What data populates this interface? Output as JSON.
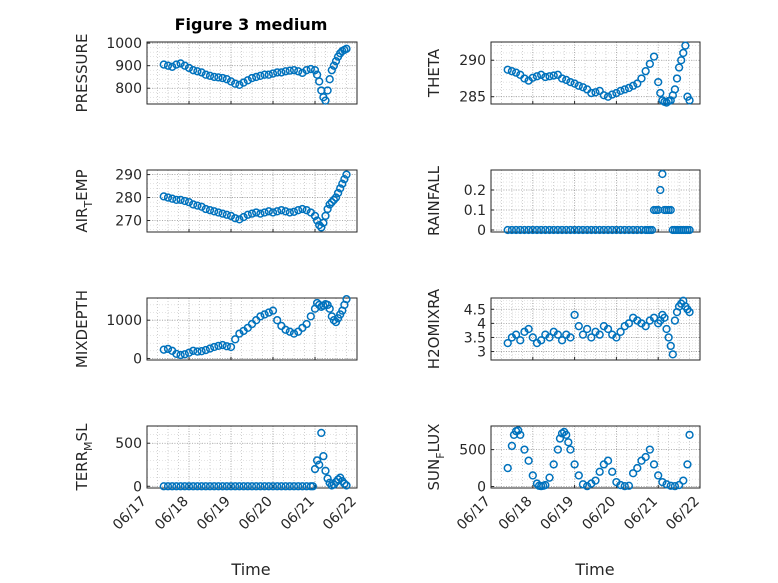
{
  "figure": {
    "title": "Figure 3 medium",
    "marker_color": "#0072bd",
    "grid": true,
    "grid_style": "dotted"
  },
  "x_axis": {
    "label": "Time",
    "range": [
      "06/17",
      "06/22"
    ],
    "tick_labels": [
      "06/17",
      "06/18",
      "06/19",
      "06/20",
      "06/21",
      "06/22"
    ]
  },
  "chart_data": [
    {
      "type": "scatter",
      "ylabel_main": "PRESSURE",
      "ylabel_sub": "",
      "ylim": [
        730,
        1005
      ],
      "yticks": [
        800,
        900,
        1000
      ],
      "ytick_labels": [
        "800",
        "900",
        "1000"
      ],
      "x_days": [
        0.4,
        0.5,
        0.6,
        0.7,
        0.8,
        0.9,
        1.0,
        1.1,
        1.2,
        1.3,
        1.4,
        1.5,
        1.6,
        1.7,
        1.8,
        1.9,
        2.0,
        2.1,
        2.2,
        2.3,
        2.4,
        2.5,
        2.6,
        2.7,
        2.8,
        2.9,
        3.0,
        3.1,
        3.2,
        3.3,
        3.4,
        3.5,
        3.6,
        3.7,
        3.8,
        3.9,
        4.0,
        4.05,
        4.1,
        4.15,
        4.2,
        4.25,
        4.3,
        4.35,
        4.4,
        4.45,
        4.5,
        4.55,
        4.6,
        4.65,
        4.7,
        4.75
      ],
      "y": [
        905,
        900,
        895,
        905,
        910,
        900,
        890,
        880,
        875,
        870,
        860,
        855,
        850,
        848,
        845,
        840,
        830,
        820,
        815,
        825,
        835,
        845,
        850,
        855,
        860,
        860,
        865,
        870,
        870,
        875,
        878,
        880,
        875,
        868,
        880,
        885,
        880,
        860,
        830,
        790,
        760,
        745,
        790,
        840,
        880,
        900,
        920,
        940,
        955,
        965,
        970,
        975
      ]
    },
    {
      "type": "scatter",
      "ylabel_main": "THETA",
      "ylabel_sub": "",
      "ylim": [
        284,
        292.5
      ],
      "yticks": [
        285,
        290
      ],
      "ytick_labels": [
        "285",
        "290"
      ],
      "x_days": [
        0.4,
        0.5,
        0.6,
        0.7,
        0.8,
        0.9,
        1.0,
        1.1,
        1.2,
        1.3,
        1.4,
        1.5,
        1.6,
        1.7,
        1.8,
        1.9,
        2.0,
        2.1,
        2.2,
        2.3,
        2.4,
        2.5,
        2.6,
        2.7,
        2.8,
        2.9,
        3.0,
        3.1,
        3.2,
        3.3,
        3.4,
        3.5,
        3.6,
        3.7,
        3.8,
        3.9,
        4.0,
        4.05,
        4.1,
        4.15,
        4.2,
        4.25,
        4.3,
        4.35,
        4.4,
        4.45,
        4.5,
        4.55,
        4.6,
        4.65,
        4.7,
        4.75
      ],
      "y": [
        288.7,
        288.5,
        288.3,
        288.0,
        287.5,
        287.2,
        287.6,
        287.8,
        288.0,
        287.7,
        287.8,
        287.9,
        288.0,
        287.5,
        287.3,
        287.0,
        286.8,
        286.5,
        286.3,
        286.0,
        285.5,
        285.6,
        285.8,
        285.2,
        285.0,
        285.3,
        285.5,
        285.8,
        286.0,
        286.2,
        286.5,
        286.8,
        287.5,
        288.5,
        289.5,
        290.5,
        287.0,
        285.5,
        284.5,
        284.3,
        284.2,
        284.4,
        284.5,
        285.2,
        286.0,
        287.5,
        289.0,
        290.0,
        291.0,
        292.0,
        285.0,
        284.5
      ]
    },
    {
      "type": "scatter",
      "ylabel_main": "AIR",
      "ylabel_sub": "T",
      "ylabel_rest": "EMP",
      "ylim": [
        265,
        292
      ],
      "yticks": [
        270,
        280,
        290
      ],
      "ytick_labels": [
        "270",
        "280",
        "290"
      ],
      "x_days": [
        0.4,
        0.5,
        0.6,
        0.7,
        0.8,
        0.9,
        1.0,
        1.1,
        1.2,
        1.3,
        1.4,
        1.5,
        1.6,
        1.7,
        1.8,
        1.9,
        2.0,
        2.1,
        2.2,
        2.3,
        2.4,
        2.5,
        2.6,
        2.7,
        2.8,
        2.9,
        3.0,
        3.1,
        3.2,
        3.3,
        3.4,
        3.5,
        3.6,
        3.7,
        3.8,
        3.9,
        4.0,
        4.05,
        4.1,
        4.15,
        4.2,
        4.25,
        4.3,
        4.35,
        4.4,
        4.45,
        4.5,
        4.55,
        4.6,
        4.65,
        4.7,
        4.75
      ],
      "y": [
        280.5,
        280.0,
        279.5,
        279.0,
        279.0,
        278.5,
        278.0,
        277.0,
        276.5,
        276.0,
        275.0,
        274.5,
        274.0,
        273.5,
        273.0,
        272.5,
        272.0,
        271.0,
        270.5,
        271.5,
        272.5,
        273.0,
        273.5,
        273.0,
        273.5,
        274.0,
        273.5,
        274.0,
        274.5,
        274.0,
        273.5,
        273.8,
        274.5,
        275.0,
        274.5,
        273.5,
        272.0,
        270.0,
        268.0,
        267.0,
        269.0,
        272.0,
        275.0,
        277.0,
        278.0,
        279.0,
        280.0,
        282.0,
        284.0,
        286.0,
        288.0,
        290.0
      ]
    },
    {
      "type": "scatter",
      "ylabel_main": "RAINFALL",
      "ylabel_sub": "",
      "ylim": [
        -0.01,
        0.3
      ],
      "yticks": [
        0,
        0.1,
        0.2
      ],
      "ytick_labels": [
        "0",
        "0.1",
        "0.2"
      ],
      "x_days": [
        0.4,
        0.5,
        0.6,
        0.7,
        0.8,
        0.9,
        1.0,
        1.1,
        1.2,
        1.3,
        1.4,
        1.5,
        1.6,
        1.7,
        1.8,
        1.9,
        2.0,
        2.1,
        2.2,
        2.3,
        2.4,
        2.5,
        2.6,
        2.7,
        2.8,
        2.9,
        3.0,
        3.1,
        3.2,
        3.3,
        3.4,
        3.5,
        3.6,
        3.7,
        3.75,
        3.8,
        3.85,
        3.9,
        3.95,
        4.0,
        4.05,
        4.1,
        4.15,
        4.2,
        4.25,
        4.3,
        4.35,
        4.4,
        4.45,
        4.5,
        4.55,
        4.6,
        4.65,
        4.7,
        4.75
      ],
      "y": [
        0,
        0,
        0,
        0,
        0,
        0,
        0,
        0,
        0,
        0,
        0,
        0,
        0,
        0,
        0,
        0,
        0,
        0,
        0,
        0,
        0,
        0,
        0,
        0,
        0,
        0,
        0,
        0,
        0,
        0,
        0,
        0,
        0,
        0,
        0,
        0,
        0,
        0.1,
        0.1,
        0.1,
        0.2,
        0.28,
        0.1,
        0.1,
        0.1,
        0.1,
        0,
        0,
        0,
        0,
        0,
        0,
        0,
        0,
        0
      ]
    },
    {
      "type": "scatter",
      "ylabel_main": "MIXDEPTH",
      "ylabel_sub": "",
      "ylim": [
        -40,
        1580
      ],
      "yticks": [
        0,
        1000
      ],
      "ytick_labels": [
        "0",
        "1000"
      ],
      "x_days": [
        0.4,
        0.5,
        0.6,
        0.7,
        0.8,
        0.9,
        1.0,
        1.1,
        1.2,
        1.3,
        1.4,
        1.5,
        1.6,
        1.7,
        1.8,
        1.9,
        2.0,
        2.1,
        2.2,
        2.3,
        2.4,
        2.5,
        2.6,
        2.7,
        2.8,
        2.9,
        3.0,
        3.1,
        3.2,
        3.3,
        3.4,
        3.5,
        3.6,
        3.7,
        3.8,
        3.9,
        4.0,
        4.05,
        4.1,
        4.15,
        4.2,
        4.25,
        4.3,
        4.35,
        4.4,
        4.45,
        4.5,
        4.55,
        4.6,
        4.65,
        4.7,
        4.75
      ],
      "y": [
        230,
        250,
        200,
        120,
        90,
        110,
        150,
        200,
        180,
        190,
        220,
        260,
        300,
        330,
        350,
        320,
        300,
        500,
        650,
        720,
        800,
        900,
        1000,
        1100,
        1150,
        1200,
        1250,
        1000,
        850,
        750,
        700,
        650,
        700,
        800,
        900,
        1100,
        1300,
        1450,
        1400,
        1350,
        1380,
        1420,
        1400,
        1300,
        1100,
        1000,
        950,
        1050,
        1150,
        1250,
        1400,
        1550
      ]
    },
    {
      "type": "scatter",
      "ylabel_main": "H2OMIXRA",
      "ylabel_sub": "",
      "ylim": [
        2.7,
        4.9
      ],
      "yticks": [
        3,
        3.5,
        4,
        4.5
      ],
      "ytick_labels": [
        "3",
        "3.5",
        "4",
        "4.5"
      ],
      "x_days": [
        0.4,
        0.5,
        0.6,
        0.7,
        0.8,
        0.9,
        1.0,
        1.1,
        1.2,
        1.3,
        1.4,
        1.5,
        1.6,
        1.7,
        1.8,
        1.9,
        2.0,
        2.1,
        2.2,
        2.3,
        2.4,
        2.5,
        2.6,
        2.7,
        2.8,
        2.9,
        3.0,
        3.1,
        3.2,
        3.3,
        3.4,
        3.5,
        3.6,
        3.7,
        3.8,
        3.9,
        4.0,
        4.05,
        4.1,
        4.15,
        4.2,
        4.25,
        4.3,
        4.35,
        4.4,
        4.45,
        4.5,
        4.55,
        4.6,
        4.65,
        4.7,
        4.75
      ],
      "y": [
        3.3,
        3.5,
        3.6,
        3.4,
        3.7,
        3.8,
        3.5,
        3.3,
        3.4,
        3.6,
        3.5,
        3.7,
        3.6,
        3.4,
        3.6,
        3.5,
        4.3,
        3.9,
        3.6,
        3.8,
        3.5,
        3.7,
        3.6,
        3.9,
        3.8,
        3.6,
        3.5,
        3.7,
        3.9,
        4.0,
        4.2,
        4.1,
        4.0,
        3.9,
        4.1,
        4.2,
        4.0,
        4.1,
        4.3,
        4.2,
        3.8,
        3.5,
        3.2,
        2.9,
        4.1,
        4.4,
        4.6,
        4.7,
        4.8,
        4.6,
        4.5,
        4.4
      ]
    },
    {
      "type": "scatter",
      "ylabel_main": "TERR",
      "ylabel_sub": "M",
      "ylabel_rest": "SL",
      "ylim": [
        -20,
        700
      ],
      "yticks": [
        0,
        500
      ],
      "ytick_labels": [
        "0",
        "500"
      ],
      "x_days": [
        0.4,
        0.5,
        0.6,
        0.7,
        0.8,
        0.9,
        1.0,
        1.1,
        1.2,
        1.3,
        1.4,
        1.5,
        1.6,
        1.7,
        1.8,
        1.9,
        2.0,
        2.1,
        2.2,
        2.3,
        2.4,
        2.5,
        2.6,
        2.7,
        2.8,
        2.9,
        3.0,
        3.1,
        3.2,
        3.3,
        3.4,
        3.5,
        3.6,
        3.7,
        3.8,
        3.9,
        3.95,
        4.0,
        4.05,
        4.1,
        4.15,
        4.2,
        4.25,
        4.3,
        4.35,
        4.4,
        4.45,
        4.5,
        4.55,
        4.6,
        4.65,
        4.7,
        4.75
      ],
      "y": [
        0,
        0,
        0,
        0,
        0,
        0,
        0,
        0,
        0,
        0,
        0,
        0,
        0,
        0,
        0,
        0,
        0,
        0,
        0,
        0,
        0,
        0,
        0,
        0,
        0,
        0,
        0,
        0,
        0,
        0,
        0,
        0,
        0,
        0,
        0,
        0,
        0,
        200,
        300,
        250,
        620,
        350,
        180,
        90,
        40,
        10,
        20,
        50,
        80,
        100,
        60,
        30,
        10
      ]
    },
    {
      "type": "scatter",
      "ylabel_main": "SUN",
      "ylabel_sub": "F",
      "ylabel_rest": "LUX",
      "ylim": [
        -20,
        820
      ],
      "yticks": [
        0,
        500
      ],
      "ytick_labels": [
        "0",
        "500"
      ],
      "x_days": [
        0.4,
        0.5,
        0.55,
        0.6,
        0.65,
        0.7,
        0.8,
        0.9,
        1.0,
        1.1,
        1.15,
        1.2,
        1.25,
        1.3,
        1.4,
        1.5,
        1.6,
        1.65,
        1.7,
        1.75,
        1.8,
        1.85,
        1.9,
        2.0,
        2.1,
        2.2,
        2.3,
        2.4,
        2.5,
        2.6,
        2.7,
        2.8,
        2.9,
        3.0,
        3.1,
        3.2,
        3.3,
        3.4,
        3.5,
        3.6,
        3.7,
        3.8,
        3.9,
        4.0,
        4.1,
        4.2,
        4.3,
        4.4,
        4.5,
        4.6,
        4.7,
        4.75
      ],
      "y": [
        250,
        550,
        700,
        750,
        760,
        700,
        500,
        350,
        150,
        40,
        10,
        5,
        10,
        20,
        120,
        300,
        500,
        650,
        720,
        740,
        700,
        600,
        500,
        300,
        150,
        30,
        5,
        40,
        80,
        200,
        300,
        350,
        200,
        60,
        20,
        5,
        10,
        180,
        250,
        350,
        400,
        500,
        300,
        150,
        60,
        30,
        10,
        5,
        20,
        80,
        300,
        700
      ]
    }
  ]
}
